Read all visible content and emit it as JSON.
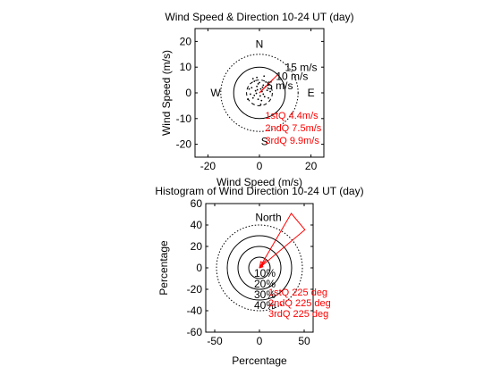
{
  "colors": {
    "background": "#ffffff",
    "axes": "#000000",
    "quartiles": "#ff0000"
  },
  "chart_data": [
    {
      "type": "scatter",
      "title": "Wind Speed & Direction 10-24 UT (day)",
      "xlabel": "Wind Speed (m/s)",
      "ylabel": "Wind Speed (m/s)",
      "xlim": [
        -25,
        25
      ],
      "ylim": [
        -25,
        25
      ],
      "xticks": [
        -20,
        0,
        20
      ],
      "yticks": [
        20,
        10,
        0,
        -10,
        -20
      ],
      "grid": false,
      "compass": [
        {
          "label": "N",
          "x": 0,
          "y": 19
        },
        {
          "label": "W",
          "x": -17,
          "y": 0
        },
        {
          "label": "E",
          "x": 20,
          "y": 0
        },
        {
          "label": "S",
          "x": 2,
          "y": -19
        }
      ],
      "rings": [
        {
          "radius": 5,
          "label": "5 m/s",
          "style": "dashed"
        },
        {
          "radius": 10,
          "label": "10 m/s",
          "style": "solid"
        },
        {
          "radius": 15,
          "label": "15 m/s",
          "style": "dotted"
        }
      ],
      "series": [
        {
          "values": [
            [
              0.5,
              1.5
            ],
            [
              -1,
              2.5
            ],
            [
              1.5,
              3
            ],
            [
              -2,
              -1
            ],
            [
              2,
              -1.5
            ],
            [
              -0.5,
              -2.5
            ],
            [
              1,
              0.5
            ],
            [
              -1.5,
              0.8
            ],
            [
              3,
              1
            ],
            [
              -3,
              2
            ],
            [
              0.8,
              -3
            ],
            [
              -2.5,
              -2
            ],
            [
              2.5,
              2.5
            ],
            [
              -0.5,
              3.5
            ],
            [
              1.5,
              -0.5
            ],
            [
              -1.2,
              -0.2
            ],
            [
              3.5,
              -2
            ],
            [
              -3.5,
              -0.5
            ],
            [
              0,
              4
            ],
            [
              0.3,
              -1.2
            ],
            [
              -2,
              4.5
            ],
            [
              2.5,
              4.2
            ],
            [
              -4,
              1.5
            ],
            [
              4.2,
              0.5
            ],
            [
              -1,
              6
            ],
            [
              1.8,
              6.5
            ],
            [
              -2.5,
              5.5
            ],
            [
              0.5,
              -4.5
            ],
            [
              -4.5,
              -2.5
            ],
            [
              3.8,
              3.2
            ],
            [
              -0.8,
              1.2
            ],
            [
              1.2,
              2.2
            ]
          ]
        }
      ],
      "quartile_lines": [
        {
          "value": 4.4,
          "direction": 225
        },
        {
          "value": 7.5,
          "direction": 225
        },
        {
          "value": 9.9,
          "direction": 225
        }
      ],
      "annotations": [
        "1stQ 4.4m/s",
        "2ndQ 7.5m/s",
        "3rdQ 9.9m/s"
      ]
    },
    {
      "type": "polar-histogram",
      "title": "Histogram of Wind Direction 10-24 UT (day)",
      "xlabel": "Percentage",
      "ylabel": "Percentage",
      "xlim": [
        -60,
        60
      ],
      "ylim": [
        -60,
        60
      ],
      "xticks": [
        -50,
        0,
        50
      ],
      "yticks": [
        60,
        40,
        20,
        0,
        -20,
        -40,
        -60
      ],
      "grid": false,
      "compass": [
        {
          "label": "North",
          "x": 10,
          "y": 47
        }
      ],
      "rings": [
        {
          "radius": 10,
          "label": "10%",
          "style": "solid"
        },
        {
          "radius": 20,
          "label": "20%",
          "style": "solid"
        },
        {
          "radius": 30,
          "label": "30%",
          "style": "solid"
        },
        {
          "radius": 40,
          "label": "40%",
          "style": "dotted"
        }
      ],
      "bins": [
        {
          "direction": 205,
          "percentage": 6
        },
        {
          "direction": 225,
          "percentage": 62
        },
        {
          "direction": 245,
          "percentage": 4
        }
      ],
      "annotations": [
        "1stQ 225 deg",
        "2ndQ 225 deg",
        "3rdQ 225 deg"
      ]
    }
  ]
}
